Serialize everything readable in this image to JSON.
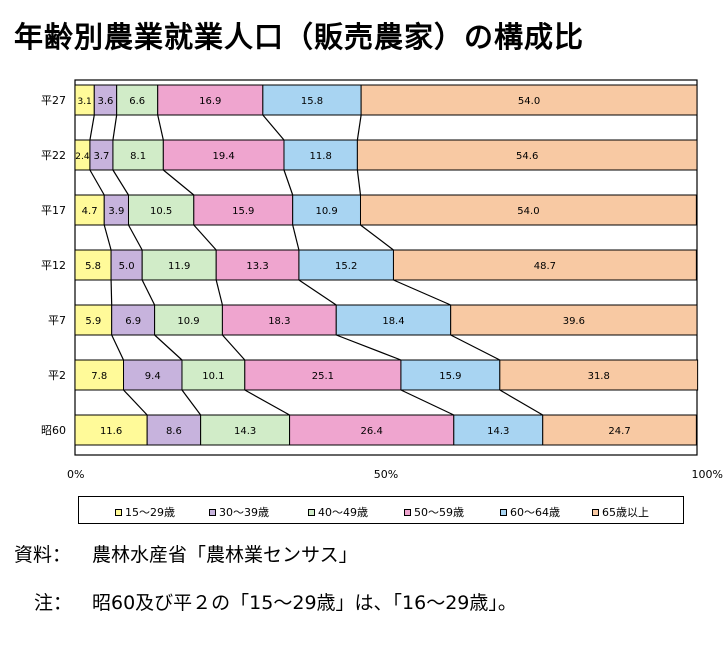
{
  "title": "年齢別農業就業人口（販売農家）の構成比",
  "chart_data": {
    "type": "bar",
    "orientation": "horizontal-stacked-percent",
    "categories": [
      "平27",
      "平22",
      "平17",
      "平12",
      "平7",
      "平2",
      "昭60"
    ],
    "series": [
      {
        "name": "15～29歳",
        "color": "#fffa99",
        "values": [
          3.1,
          2.4,
          4.7,
          5.8,
          5.9,
          7.8,
          11.6
        ]
      },
      {
        "name": "30～39歳",
        "color": "#c7b3dd",
        "values": [
          3.6,
          3.7,
          3.9,
          5.0,
          6.9,
          9.4,
          8.6
        ]
      },
      {
        "name": "40～49歳",
        "color": "#d1ecc8",
        "values": [
          6.6,
          8.1,
          10.5,
          11.9,
          10.9,
          10.1,
          14.3
        ]
      },
      {
        "name": "50～59歳",
        "color": "#efa5cf",
        "values": [
          16.9,
          19.4,
          15.9,
          13.3,
          18.3,
          25.1,
          26.4
        ]
      },
      {
        "name": "60～64歳",
        "color": "#a8d4f2",
        "values": [
          15.8,
          11.8,
          10.9,
          15.2,
          18.4,
          15.9,
          14.3
        ]
      },
      {
        "name": "65歳以上",
        "color": "#f8c9a3",
        "values": [
          54.0,
          54.6,
          54.0,
          48.7,
          39.6,
          31.8,
          24.7
        ]
      }
    ],
    "xticks": [
      "0%",
      "50%",
      "100%"
    ],
    "xlim": [
      0,
      100
    ],
    "legend": "bottom"
  },
  "source_label": "資料：",
  "source_text": "農林水産省「農林業センサス」",
  "note_label": "注：",
  "note_text": "昭60及び平２の「15～29歳」は、「16～29歳」。"
}
